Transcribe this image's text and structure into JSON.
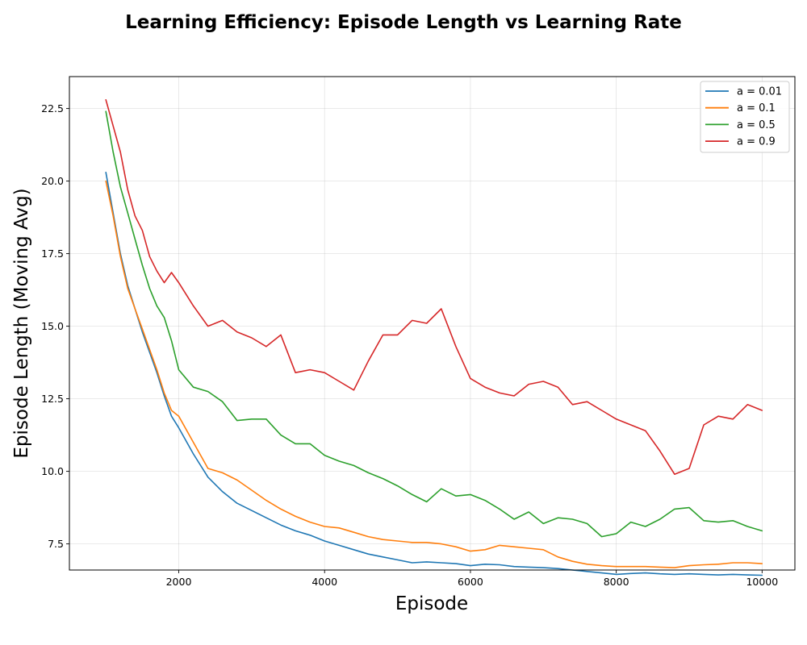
{
  "chart_data": {
    "type": "line",
    "title": "Learning Efficiency: Episode Length vs Learning Rate",
    "xlabel": "Episode",
    "ylabel": "Episode Length (Moving Avg)",
    "xlim": [
      500,
      10450
    ],
    "ylim": [
      6.6,
      23.6
    ],
    "xticks": [
      2000,
      4000,
      6000,
      8000,
      10000
    ],
    "yticks": [
      7.5,
      10.0,
      12.5,
      15.0,
      17.5,
      20.0,
      22.5
    ],
    "grid": true,
    "legend_position": "top-right",
    "series": [
      {
        "name": "a = 0.01",
        "color": "#1f77b4",
        "x": [
          1000,
          1100,
          1200,
          1300,
          1400,
          1500,
          1600,
          1700,
          1800,
          1900,
          2000,
          2200,
          2400,
          2600,
          2800,
          3000,
          3200,
          3400,
          3600,
          3800,
          4000,
          4200,
          4400,
          4600,
          4800,
          5000,
          5200,
          5400,
          5600,
          5800,
          6000,
          6200,
          6400,
          6600,
          6800,
          7000,
          7200,
          7400,
          7600,
          7800,
          8000,
          8200,
          8400,
          8600,
          8800,
          9000,
          9200,
          9400,
          9600,
          9800,
          10000
        ],
        "values": [
          20.3,
          18.9,
          17.5,
          16.4,
          15.6,
          14.8,
          14.1,
          13.4,
          12.6,
          11.9,
          11.5,
          10.6,
          9.8,
          9.3,
          8.9,
          8.65,
          8.4,
          8.15,
          7.95,
          7.8,
          7.6,
          7.45,
          7.3,
          7.15,
          7.05,
          6.95,
          6.85,
          6.88,
          6.85,
          6.82,
          6.75,
          6.8,
          6.78,
          6.72,
          6.7,
          6.68,
          6.65,
          6.6,
          6.55,
          6.5,
          6.45,
          6.48,
          6.5,
          6.47,
          6.45,
          6.47,
          6.45,
          6.43,
          6.45,
          6.43,
          6.42
        ]
      },
      {
        "name": "a = 0.1",
        "color": "#ff7f0e",
        "x": [
          1000,
          1100,
          1200,
          1300,
          1400,
          1500,
          1600,
          1700,
          1800,
          1900,
          2000,
          2200,
          2400,
          2600,
          2800,
          3000,
          3200,
          3400,
          3600,
          3800,
          4000,
          4200,
          4400,
          4600,
          4800,
          5000,
          5200,
          5400,
          5600,
          5800,
          6000,
          6200,
          6400,
          6600,
          6800,
          7000,
          7200,
          7400,
          7600,
          7800,
          8000,
          8200,
          8400,
          8600,
          8800,
          9000,
          9200,
          9400,
          9600,
          9800,
          10000
        ],
        "values": [
          20.0,
          18.8,
          17.4,
          16.3,
          15.6,
          14.9,
          14.2,
          13.5,
          12.7,
          12.1,
          11.9,
          11.0,
          10.1,
          9.95,
          9.7,
          9.35,
          9.0,
          8.7,
          8.45,
          8.25,
          8.1,
          8.05,
          7.9,
          7.75,
          7.65,
          7.6,
          7.55,
          7.55,
          7.5,
          7.4,
          7.25,
          7.3,
          7.45,
          7.4,
          7.35,
          7.3,
          7.05,
          6.9,
          6.8,
          6.75,
          6.72,
          6.72,
          6.72,
          6.7,
          6.68,
          6.75,
          6.78,
          6.8,
          6.85,
          6.85,
          6.82
        ]
      },
      {
        "name": "a = 0.5",
        "color": "#2ca02c",
        "x": [
          1000,
          1100,
          1200,
          1300,
          1400,
          1500,
          1600,
          1700,
          1800,
          1900,
          2000,
          2200,
          2400,
          2600,
          2800,
          3000,
          3200,
          3400,
          3600,
          3800,
          4000,
          4200,
          4400,
          4600,
          4800,
          5000,
          5200,
          5400,
          5600,
          5800,
          6000,
          6200,
          6400,
          6600,
          6800,
          7000,
          7200,
          7400,
          7600,
          7800,
          8000,
          8200,
          8400,
          8600,
          8800,
          9000,
          9200,
          9400,
          9600,
          9800,
          10000
        ],
        "values": [
          22.4,
          21.0,
          19.8,
          18.9,
          18.0,
          17.1,
          16.3,
          15.7,
          15.3,
          14.5,
          13.5,
          12.9,
          12.75,
          12.4,
          11.75,
          11.8,
          11.8,
          11.25,
          10.95,
          10.95,
          10.55,
          10.35,
          10.2,
          9.95,
          9.75,
          9.5,
          9.2,
          8.95,
          9.4,
          9.15,
          9.2,
          9.0,
          8.7,
          8.35,
          8.6,
          8.2,
          8.4,
          8.35,
          8.2,
          7.75,
          7.85,
          8.25,
          8.1,
          8.35,
          8.7,
          8.75,
          8.3,
          8.25,
          8.3,
          8.1,
          7.95
        ]
      },
      {
        "name": "a = 0.9",
        "color": "#d62728",
        "x": [
          1000,
          1100,
          1200,
          1300,
          1400,
          1500,
          1600,
          1700,
          1800,
          1900,
          2000,
          2200,
          2400,
          2600,
          2800,
          3000,
          3200,
          3400,
          3600,
          3800,
          4000,
          4200,
          4400,
          4600,
          4800,
          5000,
          5200,
          5400,
          5600,
          5800,
          6000,
          6200,
          6400,
          6600,
          6800,
          7000,
          7200,
          7400,
          7600,
          7800,
          8000,
          8200,
          8400,
          8600,
          8800,
          9000,
          9200,
          9400,
          9600,
          9800,
          10000
        ],
        "values": [
          22.8,
          21.9,
          21.0,
          19.7,
          18.8,
          18.3,
          17.4,
          16.9,
          16.5,
          16.85,
          16.5,
          15.7,
          15.0,
          15.2,
          14.8,
          14.6,
          14.3,
          14.7,
          13.4,
          13.5,
          13.4,
          13.1,
          12.8,
          13.8,
          14.7,
          14.7,
          15.2,
          15.1,
          15.6,
          14.3,
          13.2,
          12.9,
          12.7,
          12.6,
          13.0,
          13.1,
          12.9,
          12.3,
          12.4,
          12.1,
          11.8,
          11.6,
          11.4,
          10.7,
          9.9,
          10.1,
          11.6,
          11.9,
          11.8,
          12.3,
          12.1
        ]
      }
    ]
  }
}
